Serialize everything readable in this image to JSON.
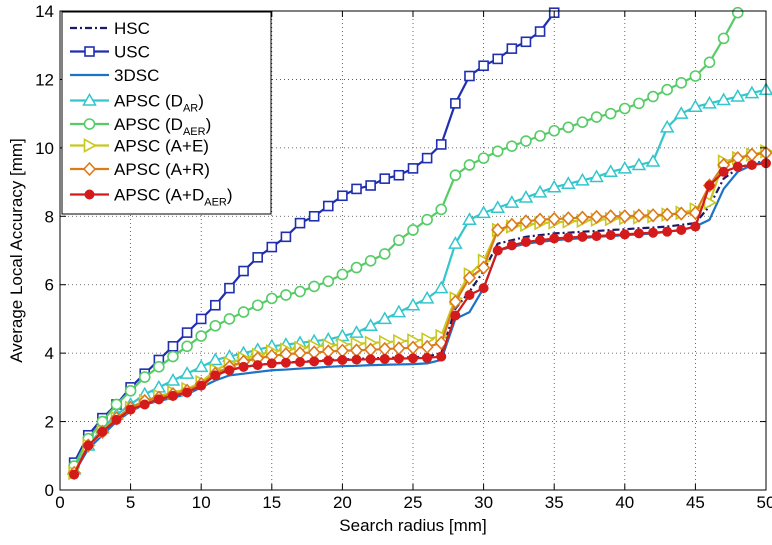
{
  "chart_data": {
    "type": "line",
    "xlabel": "Search radius [mm]",
    "ylabel": "Average Local Accuracy [mm]",
    "xlim": [
      0,
      50
    ],
    "ylim": [
      0,
      14
    ],
    "xticks": [
      0,
      5,
      10,
      15,
      20,
      25,
      30,
      35,
      40,
      45,
      50
    ],
    "yticks": [
      0,
      2,
      4,
      6,
      8,
      10,
      12,
      14
    ],
    "grid": true,
    "legend_position": "top-left",
    "series": [
      {
        "name": "HSC",
        "name_sub": "",
        "name_suffix": "",
        "color": "#1a1a66",
        "dash": "dashdot",
        "marker": "none",
        "x": [
          1,
          2,
          3,
          4,
          5,
          6,
          7,
          8,
          9,
          10,
          11,
          12,
          13,
          14,
          15,
          16,
          17,
          18,
          19,
          20,
          21,
          22,
          23,
          24,
          25,
          26,
          27,
          28,
          29,
          30,
          31,
          32,
          33,
          34,
          35,
          36,
          37,
          38,
          39,
          40,
          41,
          42,
          43,
          44,
          45,
          46,
          47,
          48,
          49,
          50
        ],
        "y": [
          0.6,
          1.3,
          1.7,
          2.1,
          2.4,
          2.6,
          2.7,
          2.8,
          2.9,
          3.1,
          3.4,
          3.5,
          3.6,
          3.65,
          3.7,
          3.72,
          3.75,
          3.77,
          3.8,
          3.82,
          3.83,
          3.85,
          3.86,
          3.87,
          3.88,
          3.9,
          4.0,
          5.3,
          5.8,
          6.4,
          7.2,
          7.3,
          7.4,
          7.45,
          7.5,
          7.52,
          7.55,
          7.57,
          7.6,
          7.62,
          7.65,
          7.67,
          7.7,
          7.75,
          7.8,
          8.3,
          9.1,
          9.4,
          9.55,
          9.6
        ]
      },
      {
        "name": "USC",
        "name_sub": "",
        "name_suffix": "",
        "color": "#1f2fb0",
        "dash": "solid",
        "marker": "square",
        "x": [
          1,
          2,
          3,
          4,
          5,
          6,
          7,
          8,
          9,
          10,
          11,
          12,
          13,
          14,
          15,
          16,
          17,
          18,
          19,
          20,
          21,
          22,
          23,
          24,
          25,
          26,
          27,
          28,
          29,
          30,
          31,
          32,
          33,
          34,
          35
        ],
        "y": [
          0.8,
          1.6,
          2.1,
          2.5,
          3.0,
          3.4,
          3.8,
          4.2,
          4.6,
          5.0,
          5.4,
          5.9,
          6.4,
          6.8,
          7.1,
          7.4,
          7.8,
          8.0,
          8.3,
          8.6,
          8.8,
          8.9,
          9.1,
          9.2,
          9.4,
          9.7,
          10.1,
          11.3,
          12.1,
          12.4,
          12.6,
          12.9,
          13.1,
          13.4,
          13.95
        ]
      },
      {
        "name": "3DSC",
        "name_sub": "",
        "name_suffix": "",
        "color": "#1a73c8",
        "dash": "solid",
        "marker": "none",
        "x": [
          1,
          2,
          3,
          4,
          5,
          6,
          7,
          8,
          9,
          10,
          11,
          12,
          13,
          14,
          15,
          16,
          17,
          18,
          19,
          20,
          21,
          22,
          23,
          24,
          25,
          26,
          27,
          28,
          29,
          30,
          31,
          32,
          33,
          34,
          35,
          36,
          37,
          38,
          39,
          40,
          41,
          42,
          43,
          44,
          45,
          46,
          47,
          48,
          49,
          50
        ],
        "y": [
          0.5,
          1.2,
          1.6,
          2.0,
          2.3,
          2.5,
          2.6,
          2.7,
          2.8,
          3.0,
          3.2,
          3.35,
          3.4,
          3.45,
          3.5,
          3.52,
          3.55,
          3.57,
          3.6,
          3.62,
          3.63,
          3.65,
          3.66,
          3.67,
          3.68,
          3.7,
          3.8,
          5.0,
          5.2,
          5.9,
          7.0,
          7.1,
          7.2,
          7.25,
          7.3,
          7.33,
          7.36,
          7.4,
          7.42,
          7.45,
          7.47,
          7.5,
          7.55,
          7.6,
          7.7,
          7.9,
          8.8,
          9.3,
          9.5,
          9.6
        ]
      },
      {
        "name": "APSC (D",
        "name_sub": "AR",
        "name_suffix": ")",
        "color": "#33c6cc",
        "dash": "solid",
        "marker": "triangle-up",
        "x": [
          1,
          2,
          3,
          4,
          5,
          6,
          7,
          8,
          9,
          10,
          11,
          12,
          13,
          14,
          15,
          16,
          17,
          18,
          19,
          20,
          21,
          22,
          23,
          24,
          25,
          26,
          27,
          28,
          29,
          30,
          31,
          32,
          33,
          34,
          35,
          36,
          37,
          38,
          39,
          40,
          41,
          42,
          43,
          44,
          45,
          46,
          47,
          48,
          49,
          50
        ],
        "y": [
          0.6,
          1.3,
          1.8,
          2.2,
          2.5,
          2.8,
          3.0,
          3.2,
          3.4,
          3.6,
          3.8,
          3.9,
          4.0,
          4.1,
          4.2,
          4.25,
          4.3,
          4.35,
          4.4,
          4.5,
          4.6,
          4.8,
          5.0,
          5.2,
          5.4,
          5.6,
          5.9,
          7.2,
          7.9,
          8.1,
          8.25,
          8.4,
          8.55,
          8.7,
          8.85,
          8.95,
          9.05,
          9.15,
          9.3,
          9.4,
          9.5,
          9.6,
          10.6,
          11.0,
          11.2,
          11.3,
          11.4,
          11.5,
          11.6,
          11.7
        ]
      },
      {
        "name": "APSC (D",
        "name_sub": "AER",
        "name_suffix": ")",
        "color": "#55cc66",
        "dash": "solid",
        "marker": "circle-open",
        "x": [
          1,
          2,
          3,
          4,
          5,
          6,
          7,
          8,
          9,
          10,
          11,
          12,
          13,
          14,
          15,
          16,
          17,
          18,
          19,
          20,
          21,
          22,
          23,
          24,
          25,
          26,
          27,
          28,
          29,
          30,
          31,
          32,
          33,
          34,
          35,
          36,
          37,
          38,
          39,
          40,
          41,
          42,
          43,
          44,
          45,
          46,
          47,
          48
        ],
        "y": [
          0.7,
          1.5,
          2.0,
          2.5,
          2.9,
          3.3,
          3.6,
          3.9,
          4.2,
          4.5,
          4.8,
          5.0,
          5.2,
          5.4,
          5.6,
          5.7,
          5.8,
          5.95,
          6.1,
          6.3,
          6.5,
          6.7,
          6.9,
          7.3,
          7.6,
          7.9,
          8.2,
          9.2,
          9.5,
          9.7,
          9.9,
          10.05,
          10.2,
          10.35,
          10.5,
          10.6,
          10.75,
          10.9,
          11.0,
          11.15,
          11.3,
          11.5,
          11.7,
          11.9,
          12.1,
          12.5,
          13.2,
          13.95
        ]
      },
      {
        "name": "APSC (A+E)",
        "name_sub": "",
        "name_suffix": "",
        "color": "#c8c820",
        "dash": "solid",
        "marker": "triangle-right",
        "x": [
          1,
          2,
          3,
          4,
          5,
          6,
          7,
          8,
          9,
          10,
          11,
          12,
          13,
          14,
          15,
          16,
          17,
          18,
          19,
          20,
          21,
          22,
          23,
          24,
          25,
          26,
          27,
          28,
          29,
          30,
          31,
          32,
          33,
          34,
          35,
          36,
          37,
          38,
          39,
          40,
          41,
          42,
          43,
          44,
          45,
          46,
          47,
          48,
          49,
          50
        ],
        "y": [
          0.5,
          1.3,
          1.7,
          2.1,
          2.4,
          2.6,
          2.75,
          2.85,
          2.95,
          3.15,
          3.5,
          3.7,
          3.85,
          3.95,
          4.05,
          4.1,
          4.15,
          4.2,
          4.22,
          4.25,
          4.27,
          4.3,
          4.32,
          4.35,
          4.37,
          4.4,
          4.5,
          5.6,
          6.3,
          6.7,
          7.6,
          7.7,
          7.75,
          7.8,
          7.82,
          7.85,
          7.87,
          7.9,
          7.92,
          7.95,
          7.97,
          8.0,
          8.05,
          8.1,
          8.2,
          8.4,
          9.6,
          9.7,
          9.8,
          9.9
        ]
      },
      {
        "name": "APSC (A+R)",
        "name_sub": "",
        "name_suffix": "",
        "color": "#dd7a1a",
        "dash": "solid",
        "marker": "diamond",
        "x": [
          1,
          2,
          3,
          4,
          5,
          6,
          7,
          8,
          9,
          10,
          11,
          12,
          13,
          14,
          15,
          16,
          17,
          18,
          19,
          20,
          21,
          22,
          23,
          24,
          25,
          26,
          27,
          28,
          29,
          30,
          31,
          32,
          33,
          34,
          35,
          36,
          37,
          38,
          39,
          40,
          41,
          42,
          43,
          44,
          45,
          46,
          47,
          48,
          49,
          50
        ],
        "y": [
          0.5,
          1.3,
          1.7,
          2.1,
          2.4,
          2.6,
          2.7,
          2.8,
          2.9,
          3.1,
          3.4,
          3.6,
          3.75,
          3.85,
          3.92,
          3.97,
          4.0,
          4.02,
          4.05,
          4.07,
          4.08,
          4.1,
          4.12,
          4.14,
          4.16,
          4.18,
          4.3,
          5.5,
          6.2,
          6.5,
          7.6,
          7.75,
          7.85,
          7.9,
          7.92,
          7.94,
          7.96,
          7.98,
          8.0,
          8.0,
          8.02,
          8.03,
          8.05,
          8.08,
          8.1,
          8.9,
          9.5,
          9.7,
          9.8,
          9.85
        ]
      },
      {
        "name": "APSC (A+D",
        "name_sub": "AER",
        "name_suffix": ")",
        "color": "#d41a1a",
        "dash": "solid",
        "marker": "circle-filled",
        "x": [
          1,
          2,
          3,
          4,
          5,
          6,
          7,
          8,
          9,
          10,
          11,
          12,
          13,
          14,
          15,
          16,
          17,
          18,
          19,
          20,
          21,
          22,
          23,
          24,
          25,
          26,
          27,
          28,
          29,
          30,
          31,
          32,
          33,
          34,
          35,
          36,
          37,
          38,
          39,
          40,
          41,
          42,
          43,
          44,
          45,
          46,
          47,
          48,
          49,
          50
        ],
        "y": [
          0.45,
          1.3,
          1.7,
          2.05,
          2.35,
          2.5,
          2.65,
          2.75,
          2.85,
          3.05,
          3.35,
          3.5,
          3.6,
          3.65,
          3.7,
          3.72,
          3.74,
          3.76,
          3.78,
          3.8,
          3.81,
          3.82,
          3.83,
          3.84,
          3.85,
          3.86,
          3.9,
          5.1,
          5.7,
          5.9,
          7.0,
          7.15,
          7.25,
          7.3,
          7.35,
          7.38,
          7.4,
          7.42,
          7.45,
          7.47,
          7.5,
          7.52,
          7.55,
          7.6,
          7.7,
          8.9,
          9.3,
          9.45,
          9.5,
          9.55
        ]
      }
    ]
  }
}
